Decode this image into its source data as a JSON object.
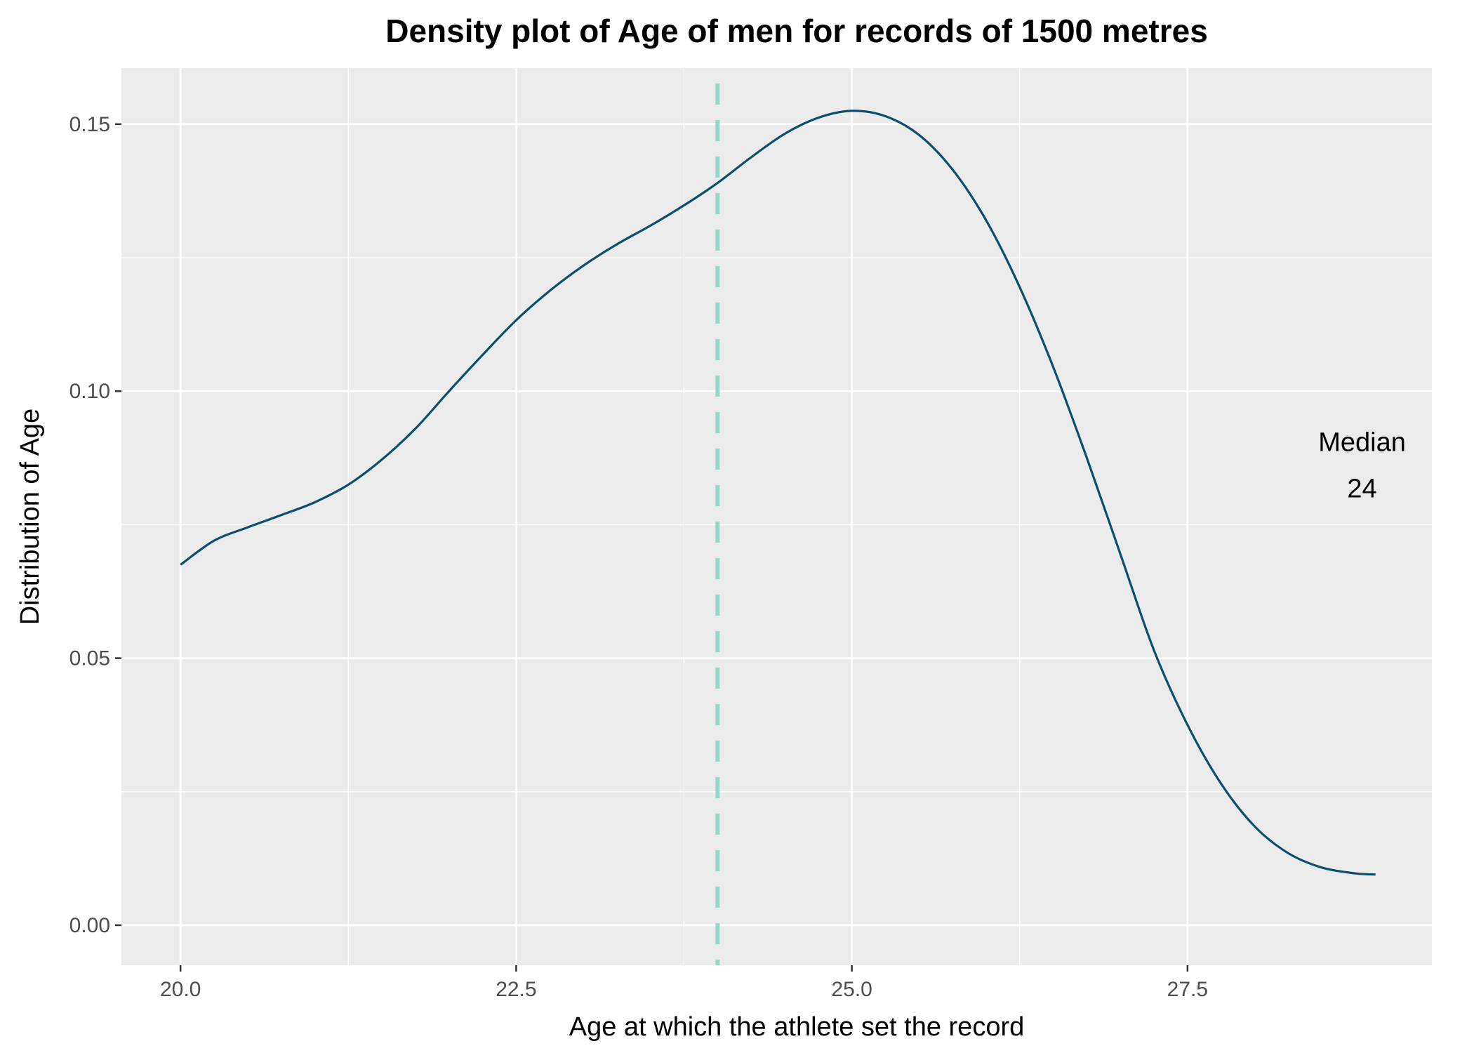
{
  "chart_data": {
    "type": "line",
    "title": "Density plot of Age of men for records of 1500 metres",
    "xlabel": "Age at which the athlete set the record",
    "ylabel": "Distribution of Age",
    "xlim": [
      19.56,
      29.32
    ],
    "ylim": [
      -0.0075,
      0.1605
    ],
    "x_ticks": [
      20.0,
      22.5,
      25.0,
      27.5
    ],
    "x_tick_labels": [
      "20.0",
      "22.5",
      "25.0",
      "27.5"
    ],
    "y_ticks": [
      0.0,
      0.05,
      0.1,
      0.15
    ],
    "y_tick_labels": [
      "0.00",
      "0.05",
      "0.10",
      "0.15"
    ],
    "grid": true,
    "series": [
      {
        "color": "#0b4f6c",
        "x": [
          20.0,
          20.25,
          20.5,
          20.75,
          21.0,
          21.25,
          21.5,
          21.75,
          22.0,
          22.25,
          22.5,
          22.75,
          23.0,
          23.25,
          23.5,
          23.75,
          24.0,
          24.25,
          24.5,
          24.75,
          25.0,
          25.25,
          25.5,
          25.75,
          26.0,
          26.25,
          26.5,
          26.75,
          27.0,
          27.25,
          27.5,
          27.75,
          28.0,
          28.25,
          28.5,
          28.75,
          28.9
        ],
        "y": [
          0.0675,
          0.072,
          0.0745,
          0.0768,
          0.0792,
          0.0825,
          0.0872,
          0.093,
          0.1,
          0.1068,
          0.1133,
          0.1188,
          0.1235,
          0.1275,
          0.131,
          0.1348,
          0.139,
          0.1438,
          0.1482,
          0.1512,
          0.1525,
          0.1515,
          0.148,
          0.1415,
          0.132,
          0.1195,
          0.1045,
          0.0875,
          0.0695,
          0.0515,
          0.0375,
          0.0265,
          0.0185,
          0.0135,
          0.0108,
          0.0097,
          0.0095
        ]
      }
    ],
    "reference_line": {
      "x": 24.0,
      "color": "#99d5c9",
      "style": "dashed"
    },
    "annotation": {
      "lines": [
        "Median",
        "24"
      ],
      "x": 28.8,
      "y": 0.0875
    },
    "colors": {
      "panel_background": "#ebebeb",
      "grid": "#ffffff",
      "tick_text": "#4d4d4d"
    }
  }
}
